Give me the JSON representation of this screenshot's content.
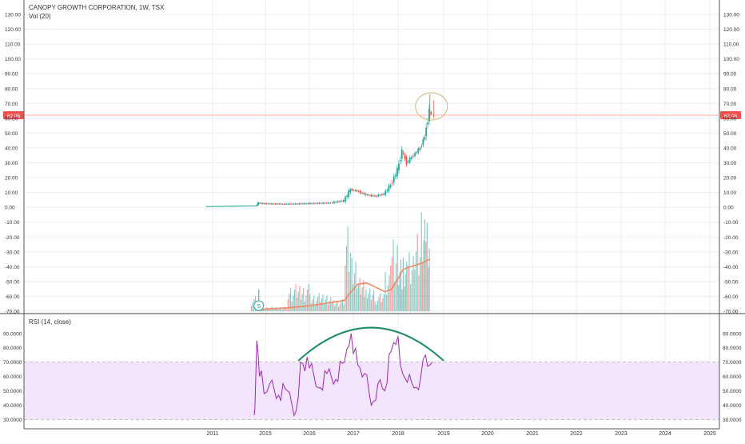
{
  "header": {
    "title": "CANOPY GROWTH CORPORATION, 1W, TSX",
    "vol_label": "Vol (20)",
    "rsi_label": "RSI (14, close)"
  },
  "price_axis": {
    "ticks": [
      "130.00",
      "120.00",
      "110.00",
      "100.00",
      "90.00",
      "80.00",
      "70.00",
      "60.00",
      "50.00",
      "40.00",
      "30.00",
      "20.00",
      "10.00",
      "0.00",
      "-10.00",
      "-20.00",
      "-30.00",
      "-40.00",
      "-50.00",
      "-60.00",
      "-70.00"
    ],
    "ylim": [
      -70,
      130
    ],
    "last_price_label": "62.06",
    "last_price": 62.06
  },
  "rsi_axis": {
    "ticks": [
      "90.0000",
      "80.0000",
      "70.0000",
      "60.0000",
      "50.0000",
      "40.0000",
      "30.0000"
    ],
    "ylim": [
      28,
      96
    ],
    "band": [
      30,
      70
    ]
  },
  "time_axis": {
    "ticks": [
      "2011",
      "2015",
      "2016",
      "2017",
      "2018",
      "2019",
      "2020",
      "2021",
      "2022",
      "2023",
      "2024",
      "2025"
    ]
  },
  "markers": {
    "split_label": "S"
  },
  "colors": {
    "up": "#26a69a",
    "down": "#ef5350",
    "volume_ma": "#f4845f",
    "rsi_line": "#9c27b0",
    "rsi_band": "#f3e5fd",
    "arc": "#1b8a6b",
    "circle": "#c8b870",
    "grid": "#e9eef2",
    "axis_text": "#333333",
    "last_price_bg": "#ef5350"
  },
  "chart_data": [
    {
      "type": "candlestick",
      "title": "CANOPY GROWTH CORPORATION, 1W, TSX",
      "x": [
        "2014.3",
        "2014.5",
        "2015.0",
        "2015.5",
        "2016.0",
        "2016.5",
        "2016.8",
        "2016.95",
        "2017.1",
        "2017.3",
        "2017.5",
        "2017.7",
        "2017.85",
        "2018.0",
        "2018.1",
        "2018.2",
        "2018.35",
        "2018.5",
        "2018.6",
        "2018.7",
        "2018.75"
      ],
      "close": [
        1.0,
        2.8,
        2.5,
        2.2,
        2.6,
        3.0,
        4.5,
        12.0,
        11.0,
        8.5,
        7.5,
        9.0,
        15.0,
        25.0,
        38.0,
        30.0,
        35.0,
        40.0,
        48.0,
        65.0,
        62.06
      ],
      "ylim": [
        -70,
        130
      ]
    },
    {
      "type": "bar",
      "title": "Vol (20)",
      "x": [
        "2014.5",
        "2015.0",
        "2015.5",
        "2016.0",
        "2016.5",
        "2016.8",
        "2016.95",
        "2017.1",
        "2017.3",
        "2017.5",
        "2017.7",
        "2017.85",
        "2018.0",
        "2018.1",
        "2018.2",
        "2018.35",
        "2018.5",
        "2018.6",
        "2018.7"
      ],
      "values": [
        10,
        2,
        3,
        18,
        12,
        8,
        60,
        35,
        22,
        15,
        12,
        30,
        55,
        40,
        38,
        42,
        55,
        65,
        58
      ],
      "ma": [
        1,
        2,
        3,
        5,
        8,
        10,
        18,
        25,
        26,
        22,
        18,
        20,
        30,
        38,
        40,
        42,
        44,
        46,
        48
      ]
    },
    {
      "type": "line",
      "title": "RSI (14, close)",
      "x": [
        "2014.15",
        "2014.2",
        "2014.35",
        "2014.45",
        "2014.55",
        "2014.7",
        "2014.9",
        "2015.1",
        "2015.3",
        "2015.5",
        "2015.7",
        "2015.8",
        "2016.0",
        "2016.2",
        "2016.4",
        "2016.6",
        "2016.8",
        "2016.95",
        "2017.1",
        "2017.25",
        "2017.4",
        "2017.55",
        "2017.7",
        "2017.85",
        "2018.0",
        "2018.1",
        "2018.2",
        "2018.35",
        "2018.5",
        "2018.6",
        "2018.7",
        "2018.75"
      ],
      "values": [
        33,
        37,
        85,
        76,
        60,
        64,
        48,
        55,
        47,
        50,
        36,
        70,
        66,
        52,
        62,
        58,
        70,
        90,
        68,
        62,
        40,
        55,
        50,
        78,
        88,
        62,
        56,
        52,
        60,
        75,
        68,
        70
      ],
      "ylim": [
        28,
        96
      ]
    }
  ]
}
